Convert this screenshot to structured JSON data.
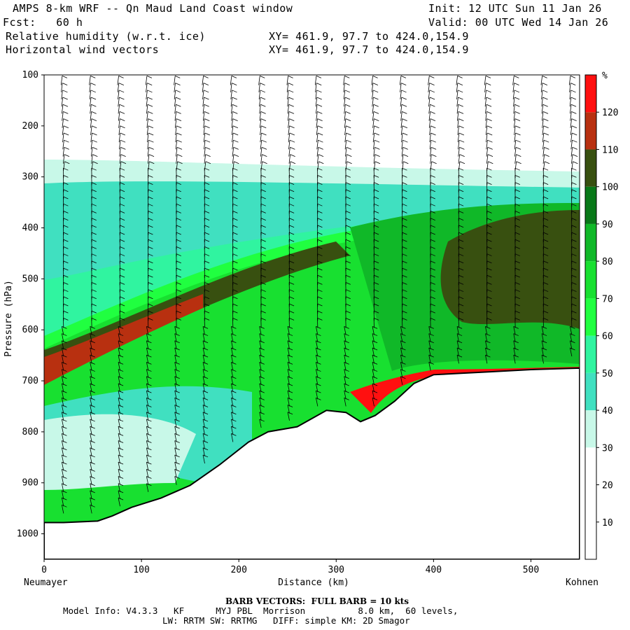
{
  "header": {
    "title": "AMPS 8-km WRF -- Qn Maud Land Coast window",
    "init": "Init: 12 UTC Sun 11 Jan 26",
    "fcst": "Fcst:   60 h",
    "valid": "Valid: 00 UTC Wed 14 Jan 26",
    "field1": "Relative humidity (w.r.t. ice)",
    "field2": "Horizontal wind vectors",
    "xy1": "XY= 461.9, 97.7 to 424.0,154.9",
    "xy2": "XY= 461.9, 97.7 to 424.0,154.9"
  },
  "footer": {
    "barb": "BARB VECTORS:  FULL BARB = 10 kts",
    "model_line1": "Model Info: V4.3.3   KF      MYJ PBL  Morrison          8.0 km,  60 levels,",
    "model_line2": "LW: RRTM SW: RRTMG   DIFF: simple KM: 2D Smagor"
  },
  "chart_data": {
    "type": "heatmap",
    "title": "Relative humidity (w.r.t. ice)",
    "xlabel": "Distance (km)",
    "ylabel": "Pressure (hPa)",
    "xlim": [
      0,
      550
    ],
    "ylim": [
      1050,
      100
    ],
    "x_ticks": [
      0,
      100,
      200,
      300,
      400,
      500
    ],
    "x_tick_labels": [
      "0",
      "100",
      "200",
      "300",
      "400",
      "500"
    ],
    "y_ticks": [
      100,
      200,
      300,
      400,
      500,
      600,
      700,
      800,
      900,
      1000
    ],
    "y_tick_labels": [
      "100",
      "200",
      "300",
      "400",
      "500",
      "600",
      "700",
      "800",
      "900",
      "1000"
    ],
    "x_end_labels": {
      "left": "Neumayer",
      "right": "Kohnen"
    },
    "colorbar": {
      "unit": "%",
      "levels": [
        10,
        20,
        30,
        40,
        50,
        60,
        70,
        80,
        90,
        100,
        110,
        120
      ],
      "labels": [
        "10",
        "20",
        "30",
        "40",
        "50",
        "60",
        "70",
        "80",
        "90",
        "100",
        "110",
        "120"
      ],
      "colors": [
        "#ffffff",
        "#ffffff",
        "#ffffff",
        "#c8f8e8",
        "#40e0c0",
        "#30f4a0",
        "#20ff40",
        "#18e030",
        "#10b828",
        "#087818",
        "#385010",
        "#b83010",
        "#ff1010"
      ]
    },
    "terrain": {
      "x": [
        0,
        20,
        55,
        70,
        90,
        120,
        150,
        180,
        210,
        230,
        260,
        290,
        310,
        325,
        340,
        360,
        380,
        400,
        430,
        460,
        500,
        550
      ],
      "p": [
        978,
        978,
        975,
        965,
        948,
        930,
        905,
        865,
        820,
        800,
        790,
        758,
        762,
        780,
        768,
        740,
        705,
        688,
        685,
        682,
        678,
        675
      ]
    },
    "rh_bands": [
      {
        "name": "upper-moist-layer-top",
        "value": 40,
        "x": [
          0,
          100,
          200,
          300,
          400,
          500,
          550
        ],
        "p_top": [
          270,
          275,
          290,
          300,
          300,
          300,
          295
        ]
      },
      {
        "name": "saturated-ribbon",
        "value": 120,
        "x": [
          0,
          50,
          100,
          150,
          170
        ],
        "p": [
          690,
          665,
          630,
          590,
          555
        ]
      }
    ]
  }
}
